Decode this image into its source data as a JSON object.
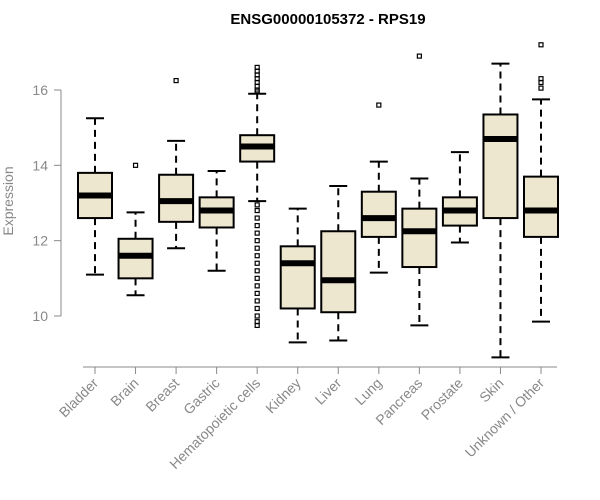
{
  "chart_data": {
    "type": "box",
    "title": "ENSG00000105372 - RPS19",
    "xlabel": "",
    "ylabel": "Expression",
    "ylim": [
      8.8,
      17.3
    ],
    "yticks": [
      10,
      12,
      14,
      16
    ],
    "grid": false,
    "colors": {
      "box_fill": "#ede7cf",
      "stroke": "#000000",
      "axis": "#888888"
    },
    "categories": [
      "Bladder",
      "Brain",
      "Breast",
      "Gastric",
      "Hematopoietic cells",
      "Kidney",
      "Liver",
      "Lung",
      "Pancreas",
      "Prostate",
      "Skin",
      "Unknown / Other"
    ],
    "boxes": [
      {
        "label": "Bladder",
        "q1": 12.6,
        "median": 13.2,
        "q3": 13.8,
        "whisker_low": 11.1,
        "whisker_high": 15.25,
        "outliers": []
      },
      {
        "label": "Brain",
        "q1": 11.0,
        "median": 11.6,
        "q3": 12.05,
        "whisker_low": 10.55,
        "whisker_high": 12.75,
        "outliers": [
          14.0
        ]
      },
      {
        "label": "Breast",
        "q1": 12.5,
        "median": 13.05,
        "q3": 13.75,
        "whisker_low": 11.8,
        "whisker_high": 14.65,
        "outliers": [
          16.25
        ]
      },
      {
        "label": "Gastric",
        "q1": 12.35,
        "median": 12.8,
        "q3": 13.15,
        "whisker_low": 11.2,
        "whisker_high": 13.85,
        "outliers": []
      },
      {
        "label": "Hematopoietic cells",
        "q1": 14.1,
        "median": 14.5,
        "q3": 14.8,
        "whisker_low": 13.05,
        "whisker_high": 15.9,
        "outliers": [
          16.6,
          16.5,
          16.4,
          16.3,
          16.2,
          16.1,
          16.0,
          15.95,
          12.95,
          12.8,
          12.6,
          12.4,
          12.2,
          12.0,
          11.8,
          11.6,
          11.4,
          11.2,
          11.0,
          10.8,
          10.6,
          10.4,
          10.2,
          10.0,
          9.85,
          9.75
        ]
      },
      {
        "label": "Kidney",
        "q1": 10.2,
        "median": 11.4,
        "q3": 11.85,
        "whisker_low": 9.3,
        "whisker_high": 12.85,
        "outliers": []
      },
      {
        "label": "Liver",
        "q1": 10.1,
        "median": 10.95,
        "q3": 12.25,
        "whisker_low": 9.35,
        "whisker_high": 13.45,
        "outliers": []
      },
      {
        "label": "Lung",
        "q1": 12.1,
        "median": 12.6,
        "q3": 13.3,
        "whisker_low": 11.15,
        "whisker_high": 14.1,
        "outliers": [
          15.6
        ]
      },
      {
        "label": "Pancreas",
        "q1": 11.3,
        "median": 12.25,
        "q3": 12.85,
        "whisker_low": 9.75,
        "whisker_high": 13.65,
        "outliers": [
          16.9
        ]
      },
      {
        "label": "Prostate",
        "q1": 12.4,
        "median": 12.8,
        "q3": 13.15,
        "whisker_low": 11.95,
        "whisker_high": 14.35,
        "outliers": []
      },
      {
        "label": "Skin",
        "q1": 12.6,
        "median": 14.7,
        "q3": 15.35,
        "whisker_low": 8.9,
        "whisker_high": 16.7,
        "outliers": []
      },
      {
        "label": "Unknown / Other",
        "q1": 12.1,
        "median": 12.8,
        "q3": 13.7,
        "whisker_low": 9.85,
        "whisker_high": 15.75,
        "outliers": [
          17.2,
          16.3,
          16.2,
          16.05
        ]
      }
    ]
  }
}
